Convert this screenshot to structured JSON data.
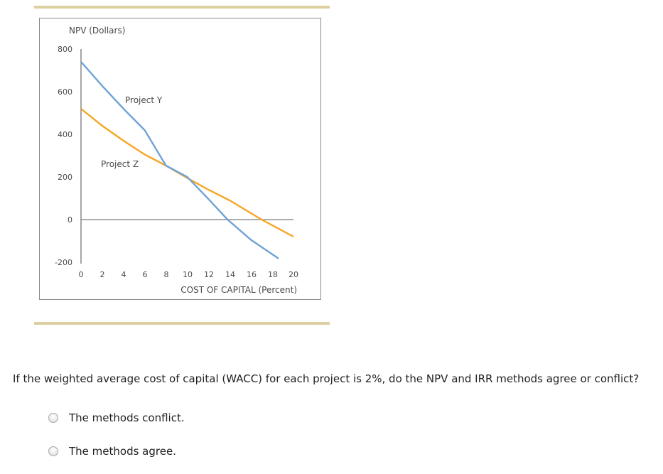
{
  "chart_data": {
    "type": "line",
    "title": "",
    "ylabel": "NPV (Dollars)",
    "xlabel": "COST OF CAPITAL (Percent)",
    "xlim": [
      0,
      20
    ],
    "ylim": [
      -200,
      800
    ],
    "x_ticks": [
      0,
      2,
      4,
      6,
      8,
      10,
      12,
      14,
      16,
      18,
      20
    ],
    "y_ticks": [
      800,
      600,
      400,
      200,
      0,
      -200
    ],
    "grid": false,
    "legend": "inline labels",
    "series": [
      {
        "name": "Project Y",
        "color": "#6fa3d6",
        "points": [
          [
            0,
            740
          ],
          [
            2,
            627
          ],
          [
            4,
            520
          ],
          [
            6,
            419
          ],
          [
            8,
            253
          ],
          [
            10,
            200
          ],
          [
            12,
            96
          ],
          [
            13.8,
            0
          ],
          [
            16,
            -95
          ],
          [
            18.6,
            -183
          ]
        ]
      },
      {
        "name": "Project Z",
        "color": "#f5a623",
        "points": [
          [
            0,
            520
          ],
          [
            2,
            440
          ],
          [
            4,
            370
          ],
          [
            6,
            305
          ],
          [
            8,
            253
          ],
          [
            10,
            195
          ],
          [
            12,
            140
          ],
          [
            14,
            90
          ],
          [
            17,
            0
          ],
          [
            20,
            -80
          ]
        ]
      }
    ],
    "annotations": [
      {
        "text": "Project Y",
        "x": 8.1,
        "y": 560
      },
      {
        "text": "Project Z",
        "x": 5.5,
        "y": 260
      }
    ],
    "crossover": {
      "x": 8.1,
      "y": 253
    }
  },
  "chart": {
    "y_axis_title": "NPV (Dollars)",
    "x_axis_title": "COST OF CAPITAL (Percent)",
    "y_tick_labels": [
      "800",
      "600",
      "400",
      "200",
      "0",
      "-200"
    ],
    "x_tick_labels": [
      "0",
      "2",
      "4",
      "6",
      "8",
      "10",
      "12",
      "14",
      "16",
      "18",
      "20"
    ],
    "label_y": "Project Y",
    "label_z": "Project Z"
  },
  "question": {
    "text": "If the weighted average cost of capital (WACC) for each project is 2%, do the NPV and IRR methods agree or conflict?",
    "options": [
      {
        "label": "The methods conflict."
      },
      {
        "label": "The methods agree."
      }
    ]
  }
}
